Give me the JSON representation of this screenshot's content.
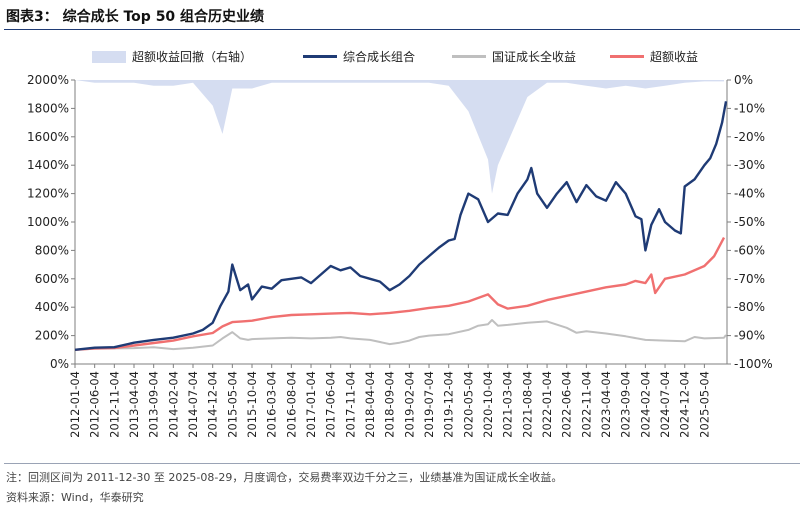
{
  "figure": {
    "title": "图表3： 综合成长 Top 50 组合历史业绩",
    "note": "注：回测区间为 2011-12-30 至 2025-08-29，月度调仓，交易费率双边千分之三，业绩基准为国证成长全收益。",
    "source": "资料来源：Wind，华泰研究"
  },
  "colors": {
    "excess_area": "#d5ddf1",
    "portfolio": "#1f3b75",
    "benchmark": "#bfbfbf",
    "excess": "#f07070",
    "axis": "#7f7f7f"
  },
  "chart_data": {
    "type": "line",
    "title": "综合成长 Top 50 组合历史业绩",
    "x": [
      "2012-01-04",
      "2012-06-04",
      "2012-11-04",
      "2013-04-04",
      "2013-09-04",
      "2014-02-04",
      "2014-07-04",
      "2014-12-04",
      "2015-05-04",
      "2015-10-04",
      "2016-03-04",
      "2016-08-04",
      "2017-01-04",
      "2017-06-04",
      "2017-11-04",
      "2018-04-04",
      "2018-09-04",
      "2019-02-04",
      "2019-07-04",
      "2019-12-04",
      "2020-05-04",
      "2020-10-04",
      "2021-03-04",
      "2021-08-04",
      "2022-01-04",
      "2022-06-04",
      "2022-11-04",
      "2023-04-04",
      "2023-09-04",
      "2024-02-04",
      "2024-07-04",
      "2024-12-04",
      "2025-05-04"
    ],
    "x_end": "2025-08-29",
    "y_left": {
      "min": 0,
      "max": 2000,
      "step": 200,
      "format": "percent"
    },
    "y_right": {
      "min": -100,
      "max": 0,
      "step": 10,
      "format": "percent",
      "label": "右轴"
    },
    "series": [
      {
        "name": "超额收益回撤（右轴）",
        "type": "area",
        "axis": "right",
        "points": [
          [
            0,
            0
          ],
          [
            1,
            -1
          ],
          [
            2,
            -1
          ],
          [
            3,
            -1
          ],
          [
            4,
            -2
          ],
          [
            5,
            -2
          ],
          [
            6,
            -1
          ],
          [
            7,
            -9
          ],
          [
            7.5,
            -19
          ],
          [
            8,
            -3
          ],
          [
            9,
            -3
          ],
          [
            10,
            -1
          ],
          [
            11,
            -1
          ],
          [
            12,
            -1
          ],
          [
            13,
            -1
          ],
          [
            14,
            -1
          ],
          [
            15,
            -1
          ],
          [
            16,
            -1
          ],
          [
            17,
            -1
          ],
          [
            18,
            -1
          ],
          [
            19,
            -2
          ],
          [
            20,
            -11
          ],
          [
            21,
            -28
          ],
          [
            21.2,
            -40
          ],
          [
            21.5,
            -30
          ],
          [
            22,
            -22
          ],
          [
            23,
            -6
          ],
          [
            24,
            -1
          ],
          [
            25,
            -1
          ],
          [
            26,
            -2
          ],
          [
            27,
            -3
          ],
          [
            28,
            -2
          ],
          [
            29,
            -3
          ],
          [
            30,
            -2
          ],
          [
            31,
            -1
          ],
          [
            32,
            -0.5
          ],
          [
            33,
            -0.5
          ]
        ]
      },
      {
        "name": "综合成长组合",
        "type": "line",
        "axis": "left",
        "points": [
          [
            0,
            100
          ],
          [
            1,
            115
          ],
          [
            2,
            118
          ],
          [
            3,
            150
          ],
          [
            4,
            170
          ],
          [
            5,
            185
          ],
          [
            6,
            215
          ],
          [
            6.5,
            240
          ],
          [
            7,
            290
          ],
          [
            7.4,
            410
          ],
          [
            7.8,
            510
          ],
          [
            8,
            700
          ],
          [
            8.4,
            520
          ],
          [
            8.8,
            560
          ],
          [
            9,
            455
          ],
          [
            9.5,
            545
          ],
          [
            10,
            530
          ],
          [
            10.5,
            590
          ],
          [
            11,
            600
          ],
          [
            11.5,
            610
          ],
          [
            12,
            570
          ],
          [
            12.5,
            630
          ],
          [
            13,
            690
          ],
          [
            13.5,
            660
          ],
          [
            14,
            680
          ],
          [
            14.5,
            620
          ],
          [
            15,
            600
          ],
          [
            15.5,
            580
          ],
          [
            16,
            520
          ],
          [
            16.5,
            560
          ],
          [
            17,
            620
          ],
          [
            17.5,
            700
          ],
          [
            18,
            760
          ],
          [
            18.5,
            820
          ],
          [
            19,
            870
          ],
          [
            19.3,
            880
          ],
          [
            19.6,
            1050
          ],
          [
            20,
            1200
          ],
          [
            20.5,
            1160
          ],
          [
            21,
            1000
          ],
          [
            21.5,
            1060
          ],
          [
            22,
            1050
          ],
          [
            22.5,
            1200
          ],
          [
            23,
            1300
          ],
          [
            23.2,
            1380
          ],
          [
            23.5,
            1200
          ],
          [
            24,
            1100
          ],
          [
            24.5,
            1200
          ],
          [
            25,
            1280
          ],
          [
            25.5,
            1140
          ],
          [
            26,
            1260
          ],
          [
            26.5,
            1180
          ],
          [
            27,
            1150
          ],
          [
            27.5,
            1280
          ],
          [
            28,
            1200
          ],
          [
            28.5,
            1040
          ],
          [
            28.8,
            1020
          ],
          [
            29,
            800
          ],
          [
            29.3,
            980
          ],
          [
            29.7,
            1090
          ],
          [
            30,
            1000
          ],
          [
            30.5,
            940
          ],
          [
            30.8,
            920
          ],
          [
            31,
            1250
          ],
          [
            31.5,
            1300
          ],
          [
            32,
            1400
          ],
          [
            32.3,
            1450
          ],
          [
            32.6,
            1550
          ],
          [
            32.9,
            1700
          ],
          [
            33.1,
            1850
          ]
        ]
      },
      {
        "name": "国证成长全收益",
        "type": "line",
        "axis": "left",
        "points": [
          [
            0,
            100
          ],
          [
            1,
            108
          ],
          [
            2,
            110
          ],
          [
            3,
            112
          ],
          [
            4,
            118
          ],
          [
            5,
            105
          ],
          [
            6,
            115
          ],
          [
            7,
            130
          ],
          [
            7.5,
            180
          ],
          [
            8,
            225
          ],
          [
            8.4,
            180
          ],
          [
            8.8,
            170
          ],
          [
            9,
            175
          ],
          [
            10,
            180
          ],
          [
            11,
            185
          ],
          [
            12,
            180
          ],
          [
            13,
            185
          ],
          [
            13.5,
            190
          ],
          [
            14,
            180
          ],
          [
            15,
            170
          ],
          [
            16,
            140
          ],
          [
            16.5,
            150
          ],
          [
            17,
            165
          ],
          [
            17.5,
            190
          ],
          [
            18,
            200
          ],
          [
            19,
            210
          ],
          [
            20,
            240
          ],
          [
            20.5,
            270
          ],
          [
            21,
            280
          ],
          [
            21.2,
            310
          ],
          [
            21.5,
            270
          ],
          [
            22,
            275
          ],
          [
            23,
            290
          ],
          [
            24,
            300
          ],
          [
            25,
            255
          ],
          [
            25.5,
            220
          ],
          [
            26,
            230
          ],
          [
            27,
            215
          ],
          [
            28,
            195
          ],
          [
            29,
            170
          ],
          [
            30,
            165
          ],
          [
            31,
            160
          ],
          [
            31.5,
            190
          ],
          [
            32,
            180
          ],
          [
            33,
            185
          ],
          [
            33.1,
            205
          ]
        ]
      },
      {
        "name": "超额收益",
        "type": "line",
        "axis": "left",
        "points": [
          [
            0,
            100
          ],
          [
            1,
            110
          ],
          [
            2,
            112
          ],
          [
            3,
            130
          ],
          [
            4,
            148
          ],
          [
            5,
            165
          ],
          [
            6,
            195
          ],
          [
            7,
            218
          ],
          [
            7.5,
            265
          ],
          [
            8,
            295
          ],
          [
            8.5,
            300
          ],
          [
            9,
            305
          ],
          [
            10,
            330
          ],
          [
            11,
            345
          ],
          [
            12,
            350
          ],
          [
            13,
            355
          ],
          [
            14,
            360
          ],
          [
            15,
            350
          ],
          [
            16,
            360
          ],
          [
            17,
            375
          ],
          [
            18,
            395
          ],
          [
            19,
            410
          ],
          [
            20,
            440
          ],
          [
            21,
            490
          ],
          [
            21.5,
            420
          ],
          [
            22,
            390
          ],
          [
            23,
            410
          ],
          [
            24,
            450
          ],
          [
            25,
            480
          ],
          [
            26,
            510
          ],
          [
            27,
            540
          ],
          [
            28,
            560
          ],
          [
            28.5,
            585
          ],
          [
            29,
            570
          ],
          [
            29.3,
            630
          ],
          [
            29.5,
            500
          ],
          [
            30,
            600
          ],
          [
            31,
            630
          ],
          [
            32,
            690
          ],
          [
            32.5,
            760
          ],
          [
            33,
            890
          ]
        ]
      }
    ]
  }
}
